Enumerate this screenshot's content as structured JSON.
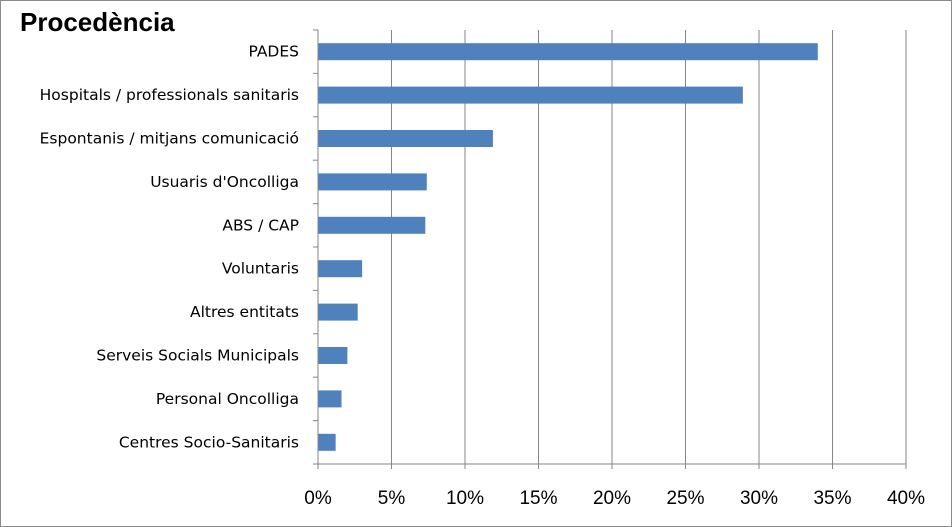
{
  "chart_data": {
    "type": "bar",
    "orientation": "horizontal",
    "title": "Procedència",
    "categories": [
      "PADES",
      "Hospitals / professionals sanitaris",
      "Espontanis / mitjans comunicació",
      "Usuaris d'Oncolliga",
      "ABS / CAP",
      "Voluntaris",
      "Altres entitats",
      "Serveis Socials Municipals",
      "Personal Oncolliga",
      "Centres Socio-Sanitaris"
    ],
    "values": [
      34.0,
      28.9,
      11.9,
      7.4,
      7.3,
      3.0,
      2.7,
      2.0,
      1.6,
      1.2
    ],
    "xlim": [
      0,
      40
    ],
    "x_ticks": [
      0,
      5,
      10,
      15,
      20,
      25,
      30,
      35,
      40
    ],
    "x_tick_labels": [
      "0%",
      "5%",
      "10%",
      "15%",
      "20%",
      "25%",
      "30%",
      "35%",
      "40%"
    ],
    "xlabel": "",
    "ylabel": "",
    "grid": "vertical",
    "legend": "none",
    "bar_color": "#4f81bd",
    "grid_color": "#868686"
  }
}
